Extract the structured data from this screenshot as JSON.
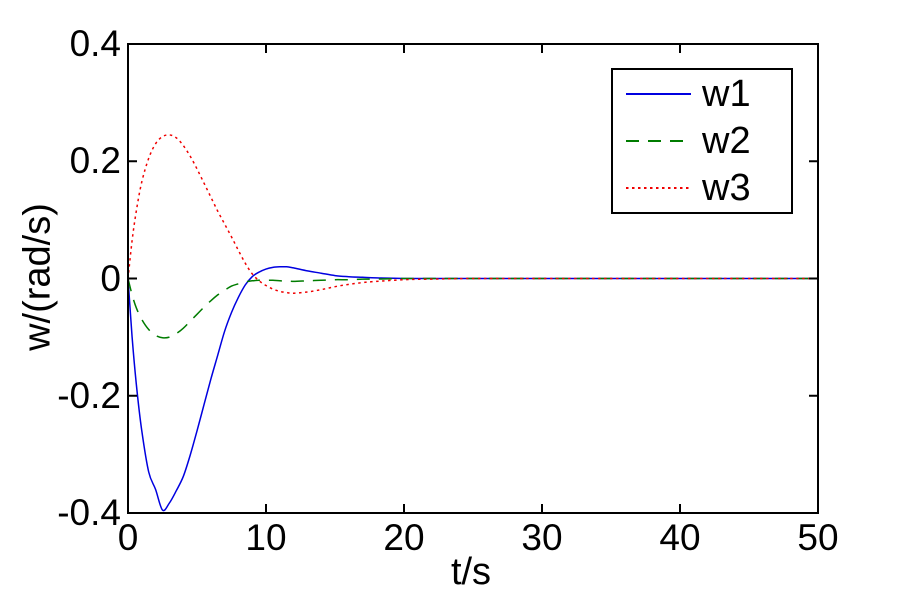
{
  "window": {
    "background": "#ffffff",
    "axis_color": "#000000"
  },
  "chart_data": {
    "type": "line",
    "title": "",
    "xlabel": "t/s",
    "ylabel": "w/(rad/s)",
    "xlim": [
      0,
      50
    ],
    "ylim": [
      -0.4,
      0.4
    ],
    "x_ticks": [
      0,
      10,
      20,
      30,
      40,
      50
    ],
    "x_tick_labels": [
      "0",
      "10",
      "20",
      "30",
      "40",
      "50"
    ],
    "y_ticks": [
      -0.4,
      -0.2,
      0,
      0.2,
      0.4
    ],
    "y_tick_labels": [
      "-0.4",
      "-0.2",
      "0",
      "0.2",
      "0.4"
    ],
    "grid": false,
    "legend": {
      "position": "top-right",
      "border_color": "#000000",
      "background": "#ffffff"
    },
    "x": [
      0,
      0.3,
      0.6,
      1,
      1.5,
      2,
      2.5,
      3,
      3.5,
      4,
      4.5,
      5,
      5.5,
      6,
      6.5,
      7,
      7.5,
      8,
      8.5,
      9,
      9.5,
      10,
      10.5,
      11,
      11.5,
      12,
      13,
      14,
      15,
      16,
      17,
      18,
      20,
      22,
      25,
      30,
      35,
      40,
      45,
      50
    ],
    "series": [
      {
        "name": "w1",
        "color": "#0000E0",
        "line_style": "solid",
        "values": [
          0,
          -0.1,
          -0.18,
          -0.26,
          -0.33,
          -0.36,
          -0.395,
          -0.383,
          -0.362,
          -0.338,
          -0.302,
          -0.26,
          -0.216,
          -0.172,
          -0.131,
          -0.09,
          -0.058,
          -0.032,
          -0.011,
          0.003,
          0.011,
          0.016,
          0.019,
          0.02,
          0.02,
          0.018,
          0.013,
          0.009,
          0.005,
          0.003,
          0.002,
          0.001,
          0,
          0,
          0,
          0,
          0,
          0,
          0,
          0
        ]
      },
      {
        "name": "w2",
        "color": "#007C00",
        "line_style": "dashed",
        "values": [
          0,
          -0.028,
          -0.05,
          -0.07,
          -0.087,
          -0.097,
          -0.101,
          -0.1,
          -0.094,
          -0.085,
          -0.073,
          -0.061,
          -0.049,
          -0.038,
          -0.028,
          -0.02,
          -0.013,
          -0.009,
          -0.006,
          -0.004,
          -0.003,
          -0.003,
          -0.003,
          -0.004,
          -0.004,
          -0.005,
          -0.004,
          -0.003,
          -0.002,
          -0.002,
          -0.001,
          -0.001,
          0,
          0,
          0,
          0,
          0,
          0,
          0,
          0
        ]
      },
      {
        "name": "w3",
        "color": "#F00000",
        "line_style": "dotted",
        "values": [
          0,
          0.065,
          0.115,
          0.165,
          0.205,
          0.23,
          0.242,
          0.245,
          0.24,
          0.227,
          0.209,
          0.187,
          0.163,
          0.139,
          0.115,
          0.093,
          0.071,
          0.048,
          0.026,
          0.008,
          -0.004,
          -0.012,
          -0.018,
          -0.022,
          -0.024,
          -0.025,
          -0.023,
          -0.019,
          -0.014,
          -0.01,
          -0.007,
          -0.005,
          -0.002,
          -0.001,
          0,
          0,
          0,
          0,
          0,
          0
        ]
      }
    ]
  }
}
